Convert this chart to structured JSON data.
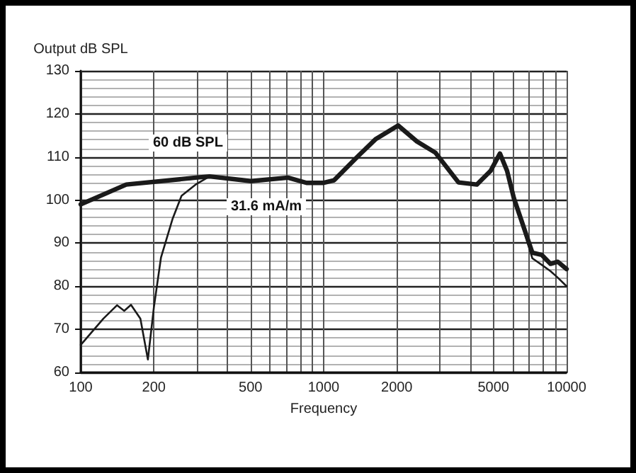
{
  "chart_data": {
    "type": "line",
    "xlabel": "Frequency",
    "ylabel": "Output dB SPL",
    "log": "x",
    "grid": true,
    "marker": "none",
    "line_style": "solid",
    "xlim": [
      100,
      10000
    ],
    "ylim": [
      60,
      130
    ],
    "xticks": [
      100,
      200,
      {
        "value": 300,
        "label": null
      },
      {
        "value": 400,
        "label": null
      },
      500,
      {
        "value": 600,
        "label": null
      },
      {
        "value": 700,
        "label": null
      },
      {
        "value": 800,
        "label": null
      },
      {
        "value": 900,
        "label": null
      },
      1000,
      2000,
      {
        "value": 3000,
        "label": null
      },
      {
        "value": 4000,
        "label": null
      },
      5000,
      {
        "value": 6000,
        "label": null
      },
      {
        "value": 7000,
        "label": null
      },
      {
        "value": 8000,
        "label": null
      },
      {
        "value": 9000,
        "label": null
      },
      10000
    ],
    "yticks": [
      60,
      70,
      80,
      90,
      100,
      110,
      120,
      130
    ],
    "series": [
      {
        "color": "#1a1a1a",
        "x": [
          100,
          154,
          297,
          339,
          502,
          713,
          850,
          1000,
          1104,
          1374,
          1641,
          2026,
          2420,
          2884,
          3590,
          4270,
          4867,
          5316,
          5688,
          6070,
          7226,
          7890,
          8590,
          9200,
          10000
        ],
        "values": [
          99,
          103.6,
          105.2,
          105.5,
          104.4,
          105.2,
          104,
          104,
          104.6,
          110,
          114.2,
          117.3,
          113.6,
          111,
          104.1,
          103.6,
          106.8,
          110.8,
          106.8,
          100.4,
          87.8,
          87.3,
          85.2,
          85.7,
          84
        ]
      },
      {
        "color": "#1a1a1a",
        "x": [
          100,
          124,
          141,
          151,
          161,
          176,
          189,
          200,
          214,
          239,
          260,
          297,
          339,
          502,
          713,
          850,
          1000,
          1104,
          1374,
          1641,
          2026,
          2420,
          2884,
          3590,
          4270,
          4867,
          5316,
          5688,
          6070,
          7226,
          7890,
          8590,
          9200,
          10000
        ],
        "values": [
          66.4,
          72.5,
          75.6,
          74.3,
          75.7,
          72.5,
          63,
          75.1,
          86.7,
          95.7,
          101,
          103.6,
          105.5,
          104.4,
          105.2,
          104,
          104,
          104.6,
          110,
          114.2,
          117.3,
          113.6,
          111,
          104.1,
          103.6,
          106.8,
          110.8,
          106.8,
          100.4,
          86.5,
          85,
          83.5,
          82,
          80
        ]
      }
    ],
    "annotations": [
      "60 dB SPL",
      "31.6 mA/m"
    ]
  }
}
